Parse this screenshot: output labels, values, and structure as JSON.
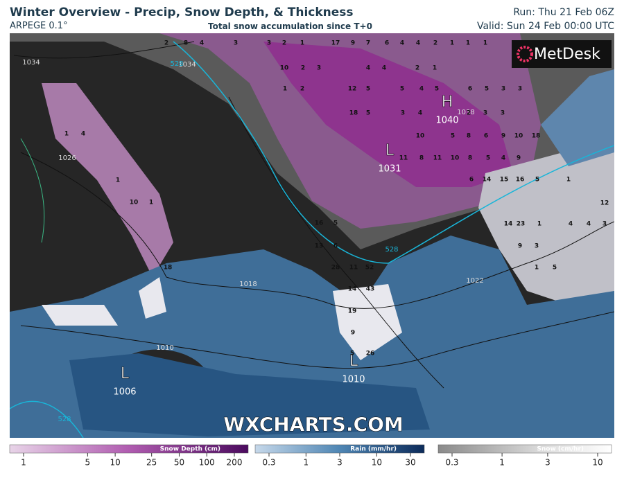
{
  "header": {
    "title": "Winter Overview - Precip, Snow Depth, & Thickness",
    "model": "ARPEGE 0.1°",
    "subtitle": "Total snow accumulation since T+0",
    "run": "Run: Thu 21 Feb 06Z",
    "valid": "Valid: Sun 24 Feb 00:00 UTC"
  },
  "logo": "MetDesk",
  "watermark": "WXCHARTS.COM",
  "pressure_centers": [
    {
      "symbol": "H",
      "value": "1040"
    },
    {
      "symbol": "L",
      "value": "1031"
    },
    {
      "symbol": "L",
      "value": "1010"
    },
    {
      "symbol": "L",
      "value": "1006"
    }
  ],
  "isobar_labels": [
    "1034",
    "1034",
    "1026",
    "1018",
    "1010",
    "1022",
    "1038"
  ],
  "thickness_labels": [
    "528",
    "528",
    "528"
  ],
  "snow_depth_labels": [
    2,
    8,
    4,
    3,
    3,
    2,
    1,
    17,
    9,
    7,
    6,
    4,
    4,
    2,
    1,
    1,
    1,
    10,
    2,
    3,
    4,
    4,
    2,
    1,
    1,
    2,
    12,
    5,
    5,
    4,
    5,
    6,
    5,
    3,
    3,
    18,
    5,
    3,
    4,
    2,
    3,
    3,
    10,
    5,
    8,
    6,
    9,
    10,
    18,
    11,
    8,
    11,
    10,
    8,
    5,
    4,
    9,
    6,
    14,
    15,
    16,
    5,
    1,
    16,
    5,
    14,
    23,
    1,
    4,
    4,
    3,
    13,
    6,
    9,
    3,
    28,
    11,
    52,
    1,
    5,
    14,
    43,
    19,
    9,
    26,
    5,
    1,
    4,
    1,
    10,
    1,
    18,
    12
  ],
  "legends": [
    {
      "title": "Snow Depth (cm)",
      "ticks": [
        1,
        5,
        10,
        25,
        50,
        100,
        200
      ],
      "scale": "log"
    },
    {
      "title": "Rain (mm/hr)",
      "ticks": [
        0.3,
        1,
        3,
        10,
        30
      ],
      "scale": "log"
    },
    {
      "title": "Snow (cm/hr)",
      "ticks": [
        0.3,
        1,
        3,
        10
      ],
      "scale": "log"
    }
  ]
}
